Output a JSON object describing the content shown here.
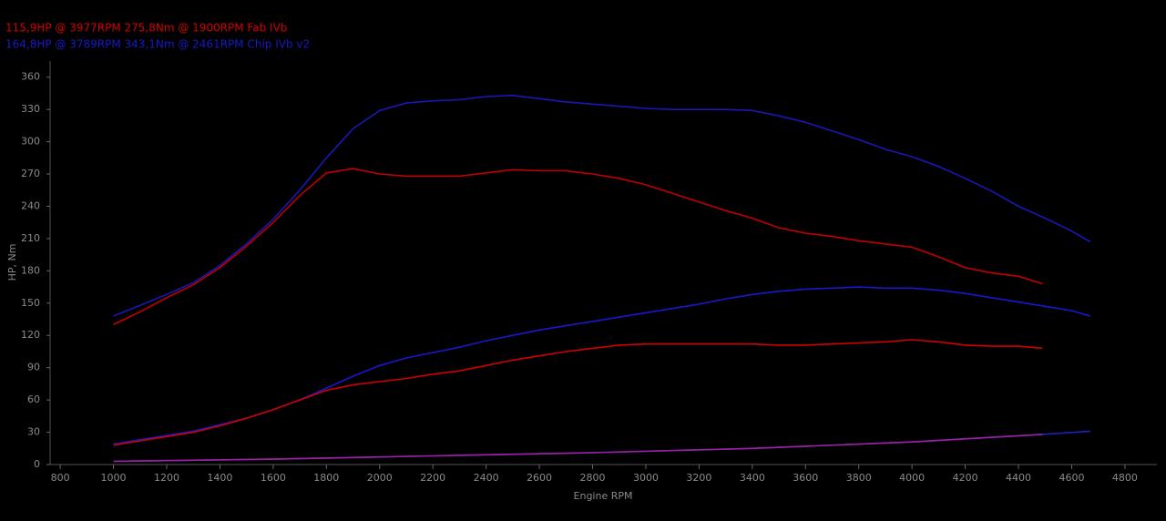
{
  "chart_data": {
    "type": "line",
    "legend": [
      {
        "text": "115,9HP @ 3977RPM 275,8Nm @ 1900RPM  Fab IVb",
        "color": "#d00000"
      },
      {
        "text": "164,8HP @ 3789RPM 343,1Nm @ 2461RPM  Chip IVb v2",
        "color": "#1818c8"
      }
    ],
    "x_label": "Engine RPM",
    "y_label": "HP, Nm",
    "xlim": [
      762,
      4920
    ],
    "ylim": [
      0,
      375
    ],
    "xticks": [
      800,
      1000,
      1200,
      1400,
      1600,
      1800,
      2000,
      2200,
      2400,
      2600,
      2800,
      3000,
      3200,
      3400,
      3600,
      3800,
      4000,
      4200,
      4400,
      4600,
      4800
    ],
    "yticks": [
      0,
      30,
      60,
      90,
      120,
      150,
      180,
      210,
      240,
      270,
      300,
      330,
      360
    ],
    "series": [
      {
        "color": "#1818b8",
        "x": [
          1000,
          1100,
          1200,
          1300,
          1400,
          1500,
          1600,
          1700,
          1800,
          1900,
          2000,
          2100,
          2200,
          2300,
          2400,
          2500,
          2600,
          2700,
          2800,
          2900,
          3000,
          3100,
          3200,
          3300,
          3400,
          3500,
          3600,
          3700,
          3800,
          3900,
          4000,
          4100,
          4200,
          4300,
          4400,
          4500,
          4600,
          4670
        ],
        "values": [
          138,
          148,
          158,
          169,
          185,
          205,
          228,
          255,
          285,
          312,
          329,
          336,
          338,
          339,
          342,
          343,
          340,
          337,
          335,
          333,
          331,
          330,
          330,
          330,
          329,
          324,
          318,
          310,
          302,
          293,
          286,
          277,
          266,
          254,
          240,
          229,
          217,
          207
        ]
      },
      {
        "color": "#c00000",
        "x": [
          1000,
          1100,
          1200,
          1300,
          1400,
          1500,
          1600,
          1700,
          1800,
          1900,
          2000,
          2100,
          2200,
          2300,
          2400,
          2500,
          2600,
          2700,
          2800,
          2900,
          3000,
          3100,
          3200,
          3300,
          3400,
          3500,
          3600,
          3700,
          3800,
          3900,
          4000,
          4100,
          4200,
          4300,
          4400,
          4490
        ],
        "values": [
          130,
          142,
          155,
          167,
          183,
          203,
          225,
          250,
          271,
          275,
          270,
          268,
          268,
          268,
          271,
          274,
          273,
          273,
          270,
          266,
          260,
          252,
          244,
          236,
          229,
          220,
          215,
          212,
          208,
          205,
          202,
          193,
          183,
          178,
          175,
          168
        ]
      },
      {
        "color": "#1818d0",
        "x": [
          1000,
          1100,
          1200,
          1300,
          1400,
          1500,
          1600,
          1700,
          1800,
          1900,
          2000,
          2100,
          2200,
          2300,
          2400,
          2500,
          2600,
          2700,
          2800,
          2900,
          3000,
          3100,
          3200,
          3300,
          3400,
          3500,
          3600,
          3700,
          3800,
          3900,
          4000,
          4100,
          4200,
          4300,
          4400,
          4500,
          4600,
          4670
        ],
        "values": [
          19,
          23,
          27,
          31,
          37,
          43,
          51,
          60,
          71,
          82,
          92,
          99,
          104,
          109,
          115,
          120,
          125,
          129,
          133,
          137,
          141,
          145,
          149,
          154,
          158,
          161,
          163,
          164,
          165,
          164,
          164,
          162,
          159,
          155,
          151,
          147,
          143,
          138
        ]
      },
      {
        "color": "#d00000",
        "x": [
          1000,
          1100,
          1200,
          1300,
          1400,
          1500,
          1600,
          1700,
          1800,
          1900,
          2000,
          2100,
          2200,
          2300,
          2400,
          2500,
          2600,
          2700,
          2800,
          2900,
          3000,
          3100,
          3200,
          3300,
          3400,
          3500,
          3600,
          3700,
          3800,
          3900,
          4000,
          4100,
          4200,
          4300,
          4400,
          4490
        ],
        "values": [
          18,
          22,
          26,
          30,
          36,
          43,
          51,
          60,
          69,
          74,
          77,
          80,
          84,
          87,
          92,
          97,
          101,
          105,
          108,
          111,
          112,
          112,
          112,
          112,
          112,
          111,
          111,
          112,
          113,
          114,
          116,
          114,
          111,
          110,
          110,
          108
        ]
      },
      {
        "color": "#2020c0",
        "x": [
          1000,
          1600,
          2200,
          2800,
          3400,
          4000,
          4490,
          4670
        ],
        "values": [
          3,
          5,
          8,
          11,
          15,
          21,
          28,
          31
        ]
      },
      {
        "color": "#a020a0",
        "x": [
          1000,
          1600,
          2200,
          2800,
          3400,
          4000,
          4490
        ],
        "values": [
          3,
          5,
          8,
          11,
          15,
          21,
          28
        ]
      }
    ]
  }
}
